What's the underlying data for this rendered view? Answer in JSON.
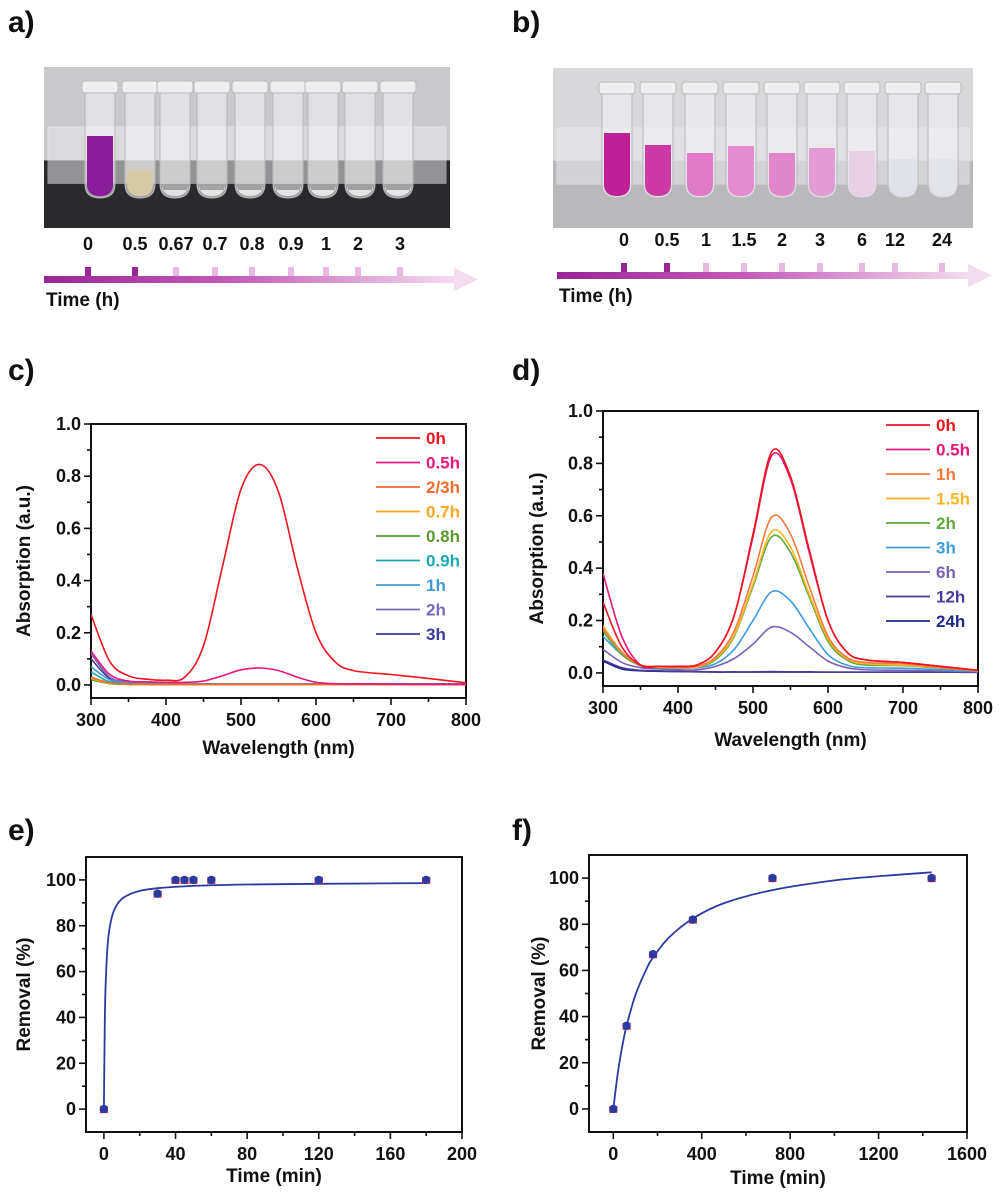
{
  "panel_labels": {
    "a": "a)",
    "b": "b)",
    "c": "c)",
    "d": "d)",
    "e": "e)",
    "f": "f)"
  },
  "photos": [
    {
      "panel": "a",
      "time_label": "Time (h)",
      "tubes": [
        {
          "label": "0",
          "color": "#8a1c9c"
        },
        {
          "label": "0.5",
          "color": "#d6c9a6"
        },
        {
          "label": "0.67",
          "color": "#e2e2e2"
        },
        {
          "label": "0.7",
          "color": "#e3e3e3"
        },
        {
          "label": "0.8",
          "color": "#e4e4e4"
        },
        {
          "label": "0.9",
          "color": "#e4e4e4"
        },
        {
          "label": "1",
          "color": "#e5e5e5"
        },
        {
          "label": "2",
          "color": "#e5e5e5"
        },
        {
          "label": "3",
          "color": "#e6e6e6"
        }
      ]
    },
    {
      "panel": "b",
      "time_label": "Time (h)",
      "tubes": [
        {
          "label": "0",
          "color": "#c01f98"
        },
        {
          "label": "0.5",
          "color": "#cc38a6"
        },
        {
          "label": "1",
          "color": "#e17bc8"
        },
        {
          "label": "1.5",
          "color": "#e68bcf"
        },
        {
          "label": "2",
          "color": "#e286cc"
        },
        {
          "label": "3",
          "color": "#e49ad5"
        },
        {
          "label": "6",
          "color": "#e8cfe3"
        },
        {
          "label": "12",
          "color": "#dfe2e8"
        },
        {
          "label": "24",
          "color": "#e2e4ea"
        }
      ]
    }
  ],
  "chart_data": [
    {
      "panel": "c",
      "type": "line",
      "xlabel": "Wavelength (nm)",
      "ylabel": "Absorption (a.u.)",
      "xlim": [
        300,
        800
      ],
      "ylim": [
        -0.05,
        1.0
      ],
      "xticks": [
        "300",
        "400",
        "500",
        "600",
        "700",
        "800"
      ],
      "yticks": [
        "0.0",
        "0.2",
        "0.4",
        "0.6",
        "0.8",
        "1.0"
      ],
      "grid": false,
      "legend": "top-right",
      "x": [
        300,
        325,
        350,
        375,
        400,
        425,
        450,
        475,
        500,
        525,
        550,
        575,
        600,
        625,
        650,
        700,
        750,
        800
      ],
      "series": [
        {
          "name": "0h",
          "color": "#f0141e",
          "values": [
            0.27,
            0.09,
            0.035,
            0.022,
            0.018,
            0.03,
            0.15,
            0.45,
            0.75,
            0.845,
            0.74,
            0.45,
            0.2,
            0.09,
            0.055,
            0.04,
            0.025,
            0.008
          ]
        },
        {
          "name": "0.5h",
          "color": "#e8157a",
          "values": [
            0.13,
            0.04,
            0.015,
            0.012,
            0.01,
            0.01,
            0.015,
            0.035,
            0.058,
            0.065,
            0.055,
            0.03,
            0.01,
            0.005,
            0.004,
            0.003,
            0.002,
            0.002
          ]
        },
        {
          "name": "2/3h",
          "color": "#f26a2e",
          "values": [
            0.03,
            0.008,
            0.004,
            0.003,
            0.002,
            0.002,
            0.002,
            0.002,
            0.002,
            0.002,
            0.002,
            0.002,
            0.002,
            0.002,
            0.002,
            0.002,
            0.002,
            0.002
          ]
        },
        {
          "name": "0.7h",
          "color": "#f8a81c",
          "values": [
            0.025,
            0.006,
            0.003,
            0.002,
            0.002,
            0.002,
            0.002,
            0.002,
            0.002,
            0.002,
            0.002,
            0.002,
            0.002,
            0.002,
            0.002,
            0.002,
            0.002,
            0.002
          ]
        },
        {
          "name": "0.8h",
          "color": "#5a9a30",
          "values": [
            0.02,
            0.005,
            0.002,
            0.001,
            0.001,
            0.001,
            0.001,
            0.001,
            0.001,
            0.001,
            0.001,
            0.001,
            0.001,
            0.001,
            0.001,
            0.001,
            0.001,
            0.001
          ]
        },
        {
          "name": "0.9h",
          "color": "#18aab0",
          "values": [
            0.05,
            0.012,
            0.005,
            0.003,
            0.002,
            0.002,
            0.002,
            0.002,
            0.002,
            0.002,
            0.002,
            0.002,
            0.002,
            0.002,
            0.002,
            0.002,
            0.002,
            0.002
          ]
        },
        {
          "name": "1h",
          "color": "#3e9bd8",
          "values": [
            0.07,
            0.02,
            0.008,
            0.005,
            0.004,
            0.003,
            0.003,
            0.003,
            0.003,
            0.003,
            0.003,
            0.003,
            0.003,
            0.003,
            0.003,
            0.003,
            0.003,
            0.003
          ]
        },
        {
          "name": "2h",
          "color": "#7a68b8",
          "values": [
            0.12,
            0.03,
            0.012,
            0.008,
            0.006,
            0.005,
            0.004,
            0.004,
            0.004,
            0.004,
            0.004,
            0.004,
            0.004,
            0.004,
            0.004,
            0.004,
            0.004,
            0.004
          ]
        },
        {
          "name": "3h",
          "color": "#3a3a9a",
          "values": [
            0.1,
            0.025,
            0.01,
            0.006,
            0.005,
            0.004,
            0.004,
            0.004,
            0.004,
            0.004,
            0.004,
            0.004,
            0.004,
            0.004,
            0.004,
            0.004,
            0.004,
            0.004
          ]
        }
      ]
    },
    {
      "panel": "d",
      "type": "line",
      "xlabel": "Wavelength (nm)",
      "ylabel": "Absorption (a.u.)",
      "xlim": [
        300,
        800
      ],
      "ylim": [
        -0.05,
        1.0
      ],
      "xticks": [
        "300",
        "400",
        "500",
        "600",
        "700",
        "800"
      ],
      "yticks": [
        "0.0",
        "0.2",
        "0.4",
        "0.6",
        "0.8",
        "1.0"
      ],
      "grid": false,
      "legend": "top-right",
      "x": [
        300,
        325,
        350,
        375,
        400,
        425,
        450,
        475,
        500,
        525,
        550,
        575,
        600,
        625,
        650,
        700,
        750,
        800
      ],
      "series": [
        {
          "name": "0h",
          "color": "#f0141e",
          "values": [
            0.27,
            0.1,
            0.03,
            0.025,
            0.025,
            0.03,
            0.08,
            0.22,
            0.53,
            0.845,
            0.75,
            0.47,
            0.2,
            0.08,
            0.05,
            0.04,
            0.025,
            0.01
          ]
        },
        {
          "name": "0.5h",
          "color": "#e8157a",
          "values": [
            0.38,
            0.14,
            0.03,
            0.025,
            0.025,
            0.03,
            0.08,
            0.22,
            0.52,
            0.83,
            0.74,
            0.46,
            0.2,
            0.08,
            0.05,
            0.04,
            0.025,
            0.01
          ]
        },
        {
          "name": "1h",
          "color": "#f57a3c",
          "values": [
            0.17,
            0.08,
            0.03,
            0.025,
            0.022,
            0.025,
            0.06,
            0.16,
            0.37,
            0.595,
            0.53,
            0.33,
            0.14,
            0.06,
            0.04,
            0.035,
            0.02,
            0.008
          ]
        },
        {
          "name": "1.5h",
          "color": "#fbb523",
          "values": [
            0.18,
            0.08,
            0.03,
            0.022,
            0.02,
            0.022,
            0.055,
            0.145,
            0.34,
            0.54,
            0.48,
            0.3,
            0.13,
            0.055,
            0.035,
            0.03,
            0.02,
            0.008
          ]
        },
        {
          "name": "2h",
          "color": "#5fa83a",
          "values": [
            0.16,
            0.07,
            0.028,
            0.02,
            0.02,
            0.022,
            0.05,
            0.14,
            0.33,
            0.52,
            0.46,
            0.29,
            0.12,
            0.05,
            0.03,
            0.028,
            0.018,
            0.007
          ]
        },
        {
          "name": "3h",
          "color": "#3d9ce0",
          "values": [
            0.14,
            0.07,
            0.028,
            0.02,
            0.018,
            0.02,
            0.035,
            0.09,
            0.2,
            0.31,
            0.275,
            0.17,
            0.07,
            0.03,
            0.02,
            0.018,
            0.012,
            0.005
          ]
        },
        {
          "name": "6h",
          "color": "#7a62b4",
          "values": [
            0.09,
            0.04,
            0.02,
            0.015,
            0.012,
            0.012,
            0.025,
            0.055,
            0.11,
            0.175,
            0.155,
            0.1,
            0.045,
            0.02,
            0.012,
            0.01,
            0.007,
            0.004
          ]
        },
        {
          "name": "12h",
          "color": "#4a3aa0",
          "values": [
            0.05,
            0.02,
            0.01,
            0.008,
            0.006,
            0.005,
            0.004,
            0.004,
            0.004,
            0.005,
            0.004,
            0.004,
            0.003,
            0.003,
            0.003,
            0.003,
            0.003,
            0.002
          ]
        },
        {
          "name": "24h",
          "color": "#1e2a8a",
          "values": [
            0.045,
            0.015,
            0.008,
            0.006,
            0.005,
            0.004,
            0.003,
            0.003,
            0.003,
            0.003,
            0.003,
            0.003,
            0.003,
            0.003,
            0.003,
            0.003,
            0.003,
            0.002
          ]
        }
      ]
    },
    {
      "panel": "e",
      "type": "scatter",
      "xlabel": "Time (min)",
      "ylabel": "Removal (%)",
      "xlim": [
        -10,
        200
      ],
      "ylim": [
        -10,
        110
      ],
      "xticks": [
        "0",
        "40",
        "80",
        "120",
        "160",
        "200"
      ],
      "yticks": [
        "0",
        "20",
        "40",
        "60",
        "80",
        "100"
      ],
      "grid": false,
      "marker_color": "#2b3aa0",
      "error_color": "#e8202a",
      "fit_color": "#2b3aa0",
      "points": {
        "x": [
          0,
          30,
          40,
          45,
          50,
          60,
          120,
          180
        ],
        "y": [
          0,
          94,
          100,
          100,
          100,
          100,
          100,
          100
        ]
      },
      "fit": {
        "x": [
          0,
          0.5,
          1,
          2,
          3,
          5,
          8,
          12,
          20,
          30,
          50,
          80,
          120,
          180
        ],
        "y": [
          0,
          38,
          55,
          70.7,
          78.2,
          85.3,
          90,
          92.8,
          95.2,
          96.4,
          97.4,
          98,
          98.3,
          98.6
        ]
      }
    },
    {
      "panel": "f",
      "type": "scatter",
      "xlabel": "Time (min)",
      "ylabel": "Removal (%)",
      "xlim": [
        -110,
        1600
      ],
      "ylim": [
        -10,
        110
      ],
      "xticks": [
        "0",
        "400",
        "800",
        "1200",
        "1600"
      ],
      "yticks": [
        "0",
        "20",
        "40",
        "60",
        "80",
        "100"
      ],
      "grid": false,
      "marker_color": "#2b3aa0",
      "error_color": "#e8202a",
      "fit_color": "#2b3aa0",
      "points": {
        "x": [
          0,
          60,
          180,
          360,
          720,
          1440
        ],
        "y": [
          0,
          36,
          67,
          82,
          100,
          100
        ]
      },
      "fit": {
        "x": [
          0,
          20,
          40,
          60,
          100,
          150,
          180,
          250,
          360,
          500,
          720,
          1000,
          1200,
          1440
        ],
        "y": [
          0,
          15.3,
          26.9,
          36,
          49.3,
          60.6,
          65.6,
          74.1,
          82.5,
          89.1,
          94.8,
          99,
          100.8,
          102.5
        ]
      }
    }
  ]
}
